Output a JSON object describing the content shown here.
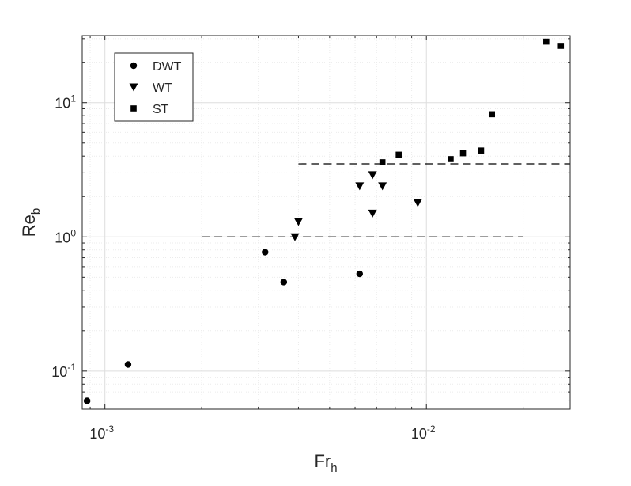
{
  "chart_data": {
    "type": "scatter",
    "x_scale": "log",
    "y_scale": "log",
    "xlim": [
      0.00085,
      0.028
    ],
    "ylim": [
      0.052,
      31.6
    ],
    "grid": "on",
    "minor_grid": "on",
    "xlabel": {
      "base": "Fr",
      "sub": "h"
    },
    "ylabel": {
      "base": "Re",
      "sub": "b"
    },
    "x_ticks": [
      {
        "value": 0.001,
        "base": "10",
        "exp": "-3"
      },
      {
        "value": 0.01,
        "base": "10",
        "exp": "-2"
      }
    ],
    "y_ticks": [
      {
        "value": 0.1,
        "base": "10",
        "exp": "-1"
      },
      {
        "value": 1,
        "base": "10",
        "exp": "0"
      },
      {
        "value": 10,
        "base": "10",
        "exp": "1"
      }
    ],
    "legend_position": "top-left",
    "series": [
      {
        "name": "DWT",
        "marker": "circle",
        "color": "#000000",
        "points": [
          {
            "x": 0.00088,
            "y": 0.06
          },
          {
            "x": 0.00118,
            "y": 0.112
          },
          {
            "x": 0.00315,
            "y": 0.77
          },
          {
            "x": 0.0036,
            "y": 0.46
          },
          {
            "x": 0.0062,
            "y": 0.53
          }
        ]
      },
      {
        "name": "WT",
        "marker": "triangle-down",
        "color": "#000000",
        "points": [
          {
            "x": 0.0039,
            "y": 1.0
          },
          {
            "x": 0.004,
            "y": 1.3
          },
          {
            "x": 0.0062,
            "y": 2.4
          },
          {
            "x": 0.0068,
            "y": 2.9
          },
          {
            "x": 0.0068,
            "y": 1.5
          },
          {
            "x": 0.0073,
            "y": 2.4
          },
          {
            "x": 0.0094,
            "y": 1.8
          }
        ]
      },
      {
        "name": "ST",
        "marker": "square",
        "color": "#000000",
        "points": [
          {
            "x": 0.0073,
            "y": 3.6
          },
          {
            "x": 0.0082,
            "y": 4.1
          },
          {
            "x": 0.0119,
            "y": 3.8
          },
          {
            "x": 0.013,
            "y": 4.2
          },
          {
            "x": 0.0148,
            "y": 4.4
          },
          {
            "x": 0.016,
            "y": 8.2
          },
          {
            "x": 0.0236,
            "y": 28.5
          },
          {
            "x": 0.0262,
            "y": 26.5
          }
        ]
      }
    ],
    "reference_lines": [
      {
        "style": "dashed",
        "y": 1.0,
        "x_start": 0.002,
        "x_end": 0.02
      },
      {
        "style": "dashed",
        "y": 3.5,
        "x_start": 0.004,
        "x_end": 0.028
      }
    ]
  }
}
